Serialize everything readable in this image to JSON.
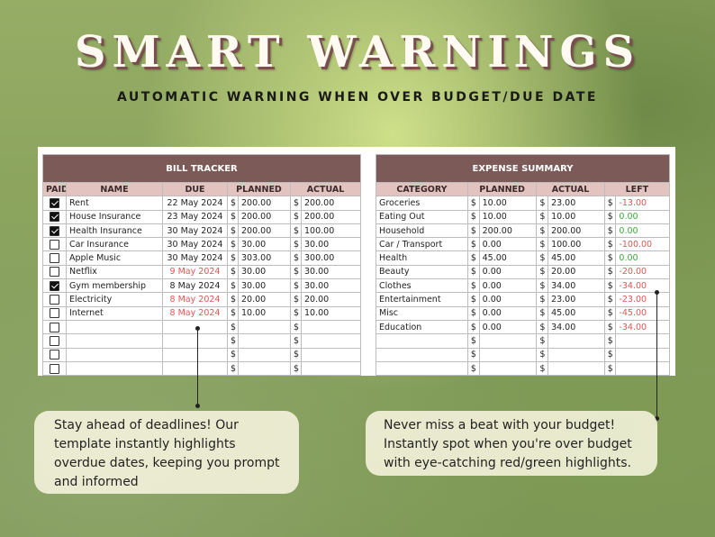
{
  "header": {
    "title": "SMART WARNINGS",
    "subtitle": "AUTOMATIC WARNING WHEN OVER BUDGET/DUE DATE"
  },
  "bill_tracker": {
    "title": "BILL TRACKER",
    "columns": [
      "PAID",
      "NAME",
      "DUE",
      "PLANNED",
      "ACTUAL"
    ],
    "currency": "$",
    "rows": [
      {
        "paid": true,
        "name": "Rent",
        "due": "22 May 2024",
        "due_overdue": false,
        "planned": "200.00",
        "actual": "200.00"
      },
      {
        "paid": true,
        "name": "House Insurance",
        "due": "23 May 2024",
        "due_overdue": false,
        "planned": "200.00",
        "actual": "200.00"
      },
      {
        "paid": true,
        "name": "Health Insurance",
        "due": "30 May 2024",
        "due_overdue": false,
        "planned": "200.00",
        "actual": "100.00"
      },
      {
        "paid": false,
        "name": "Car Insurance",
        "due": "30 May 2024",
        "due_overdue": false,
        "planned": "30.00",
        "actual": "30.00"
      },
      {
        "paid": false,
        "name": "Apple Music",
        "due": "30 May 2024",
        "due_overdue": false,
        "planned": "303.00",
        "actual": "300.00"
      },
      {
        "paid": false,
        "name": "Netflix",
        "due": "9 May 2024",
        "due_overdue": true,
        "planned": "30.00",
        "actual": "30.00"
      },
      {
        "paid": true,
        "name": "Gym membership",
        "due": "8 May 2024",
        "due_overdue": false,
        "planned": "30.00",
        "actual": "30.00"
      },
      {
        "paid": false,
        "name": "Electricity",
        "due": "8 May 2024",
        "due_overdue": true,
        "planned": "20.00",
        "actual": "20.00"
      },
      {
        "paid": false,
        "name": "Internet",
        "due": "8 May 2024",
        "due_overdue": true,
        "planned": "10.00",
        "actual": "10.00"
      },
      {
        "paid": false,
        "name": "",
        "due": "",
        "due_overdue": false,
        "planned": "",
        "actual": ""
      },
      {
        "paid": false,
        "name": "",
        "due": "",
        "due_overdue": false,
        "planned": "",
        "actual": ""
      },
      {
        "paid": false,
        "name": "",
        "due": "",
        "due_overdue": false,
        "planned": "",
        "actual": ""
      },
      {
        "paid": false,
        "name": "",
        "due": "",
        "due_overdue": false,
        "planned": "",
        "actual": ""
      }
    ]
  },
  "expense_summary": {
    "title": "EXPENSE SUMMARY",
    "columns": [
      "CATEGORY",
      "PLANNED",
      "ACTUAL",
      "LEFT"
    ],
    "currency": "$",
    "rows": [
      {
        "category": "Groceries",
        "planned": "10.00",
        "actual": "23.00",
        "left": "-13.00",
        "status": "over"
      },
      {
        "category": "Eating Out",
        "planned": "10.00",
        "actual": "10.00",
        "left": "0.00",
        "status": "ok"
      },
      {
        "category": "Household",
        "planned": "200.00",
        "actual": "200.00",
        "left": "0.00",
        "status": "ok"
      },
      {
        "category": "Car / Transport",
        "planned": "0.00",
        "actual": "100.00",
        "left": "-100.00",
        "status": "over"
      },
      {
        "category": "Health",
        "planned": "45.00",
        "actual": "45.00",
        "left": "0.00",
        "status": "ok"
      },
      {
        "category": "Beauty",
        "planned": "0.00",
        "actual": "20.00",
        "left": "-20.00",
        "status": "over"
      },
      {
        "category": "Clothes",
        "planned": "0.00",
        "actual": "34.00",
        "left": "-34.00",
        "status": "over"
      },
      {
        "category": "Entertainment",
        "planned": "0.00",
        "actual": "23.00",
        "left": "-23.00",
        "status": "over"
      },
      {
        "category": "Misc",
        "planned": "0.00",
        "actual": "45.00",
        "left": "-45.00",
        "status": "over"
      },
      {
        "category": "Education",
        "planned": "0.00",
        "actual": "34.00",
        "left": "-34.00",
        "status": "over"
      },
      {
        "category": "",
        "planned": "",
        "actual": "",
        "left": "",
        "status": ""
      },
      {
        "category": "",
        "planned": "",
        "actual": "",
        "left": "",
        "status": ""
      },
      {
        "category": "",
        "planned": "",
        "actual": "",
        "left": "",
        "status": ""
      }
    ]
  },
  "callouts": {
    "left": "Stay ahead of deadlines! Our template instantly highlights overdue dates, keeping you prompt and informed",
    "right": "Never miss a beat with your budget! Instantly spot when you're over budget with eye-catching red/green highlights."
  },
  "colors": {
    "header_brown": "#7b5a57",
    "column_header_pink": "#e2c3c0",
    "warning_red": "#e05555",
    "ok_green": "#3ea73a"
  }
}
